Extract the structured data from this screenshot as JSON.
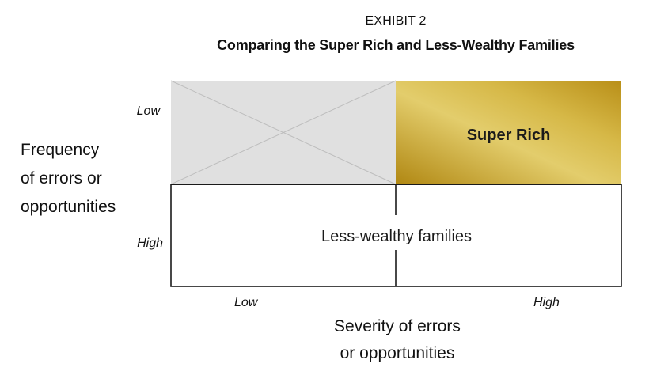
{
  "header": {
    "exhibit": "EXHIBIT 2",
    "title": "Comparing the Super Rich and Less-Wealthy Families"
  },
  "y_axis": {
    "label_lines": [
      "Frequency",
      "of errors or",
      "opportunities"
    ],
    "tick_top": "Low",
    "tick_bottom": "High"
  },
  "x_axis": {
    "label_lines": [
      "Severity of errors",
      "or opportunities"
    ],
    "tick_left": "Low",
    "tick_right": "High"
  },
  "quadrants": {
    "top_left": {
      "label": "",
      "state": "crossed-out",
      "fill": "#e0e0e0"
    },
    "top_right": {
      "label": "Super Rich",
      "fill": "#c9a227"
    },
    "bottom": {
      "label": "Less-wealthy families",
      "fill": "#ffffff"
    }
  },
  "colors": {
    "gold_light": "#e8d47a",
    "gold_dark": "#b38a14",
    "grid_line": "#1a1a1a",
    "cross_line": "#bdbdbd"
  }
}
